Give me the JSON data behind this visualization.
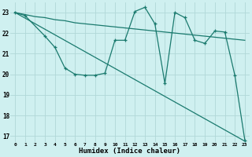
{
  "xlabel": "Humidex (Indice chaleur)",
  "bg_color": "#cff0f0",
  "grid_color": "#b0d8d8",
  "line_color": "#1a7a6e",
  "xlim": [
    -0.5,
    23.5
  ],
  "ylim": [
    16.7,
    23.5
  ],
  "yticks": [
    17,
    18,
    19,
    20,
    21,
    22,
    23
  ],
  "xticks": [
    0,
    1,
    2,
    3,
    4,
    5,
    6,
    7,
    8,
    9,
    10,
    11,
    12,
    13,
    14,
    15,
    16,
    17,
    18,
    19,
    20,
    21,
    22,
    23
  ],
  "series1_x": [
    0,
    1,
    2,
    3,
    4,
    5,
    6,
    7,
    8,
    9,
    10,
    11,
    12,
    13,
    14,
    15,
    16,
    17,
    18,
    19,
    20,
    21,
    22,
    23
  ],
  "series1_y": [
    23.0,
    22.9,
    22.8,
    22.75,
    22.65,
    22.6,
    22.5,
    22.45,
    22.4,
    22.35,
    22.3,
    22.25,
    22.2,
    22.15,
    22.1,
    22.05,
    22.0,
    21.95,
    21.9,
    21.85,
    21.8,
    21.75,
    21.7,
    21.65
  ],
  "series2_x": [
    0,
    23
  ],
  "series2_y": [
    23.0,
    16.75
  ],
  "series3_x": [
    0,
    1,
    3,
    4,
    5,
    6,
    7,
    8,
    9,
    10,
    11,
    12,
    13,
    14,
    15,
    16,
    17,
    18,
    19,
    20,
    21,
    22,
    23
  ],
  "series3_y": [
    23.0,
    22.85,
    21.85,
    21.3,
    20.3,
    20.0,
    19.95,
    19.95,
    20.05,
    21.65,
    21.65,
    23.05,
    23.25,
    22.45,
    19.55,
    23.0,
    22.75,
    21.65,
    21.5,
    22.1,
    22.05,
    19.95,
    16.8
  ]
}
